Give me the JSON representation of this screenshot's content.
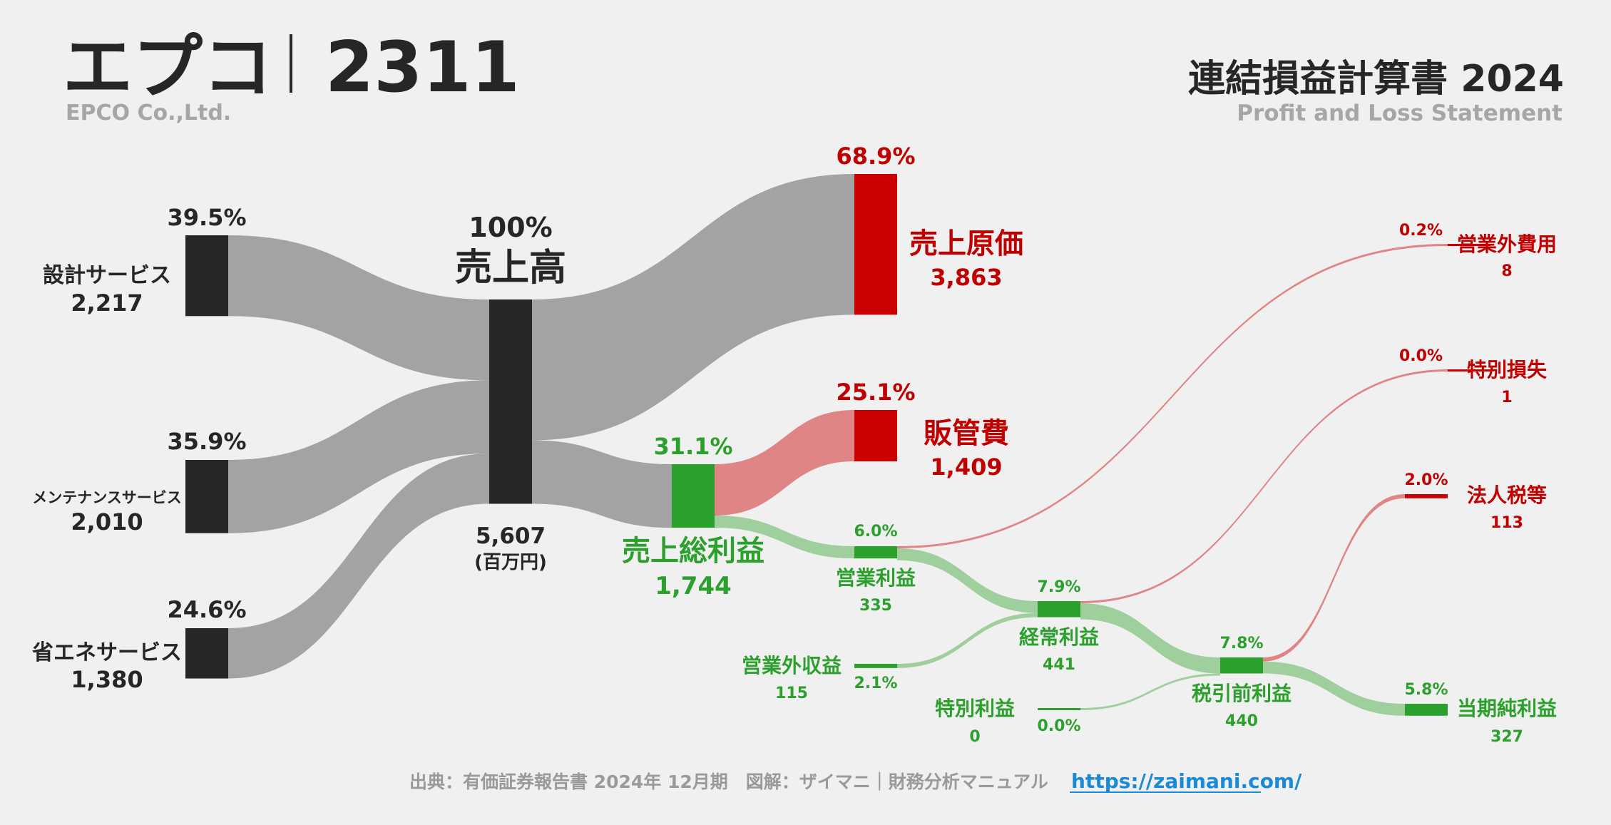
{
  "header": {
    "company_name": "エプコ",
    "separator": "|",
    "ticker": "2311",
    "company_en": "EPCO Co.,Ltd.",
    "statement_title": "連結損益計算書 2024",
    "statement_subtitle": "Profit and Loss Statement"
  },
  "footer": {
    "source": "出典：有価証券報告書 2024年 12月期　図解：ザイマニ｜財務分析マニュアル",
    "link": "https://zaimani.com/"
  },
  "colors": {
    "dark_node": "#262626",
    "gray_flow": "#a3a3a3",
    "red_node": "#cc0000",
    "red_flow": "#e08585",
    "green_node": "#2ca02c",
    "green_flow": "#9fcf9c",
    "green_text": "#2ca02c",
    "red_text": "#c00000",
    "link_color": "#1a8ad4",
    "muted_text": "#9a9a9a"
  },
  "chart_data": {
    "type": "sankey",
    "unit": "(百万円)",
    "nodes": [
      {
        "id": "design",
        "label": "設計サービス",
        "value": 2217,
        "value_label": "2,217",
        "pct": "39.5%"
      },
      {
        "id": "maint",
        "label": "メンテナンスサービス",
        "value": 2010,
        "value_label": "2,010",
        "pct": "35.9%"
      },
      {
        "id": "energy",
        "label": "省エネサービス",
        "value": 1380,
        "value_label": "1,380",
        "pct": "24.6%"
      },
      {
        "id": "revenue",
        "label": "売上高",
        "value": 5607,
        "value_label": "5,607",
        "pct": "100%"
      },
      {
        "id": "cogs",
        "label": "売上原価",
        "value": 3863,
        "value_label": "3,863",
        "pct": "68.9%"
      },
      {
        "id": "gross",
        "label": "売上総利益",
        "value": 1744,
        "value_label": "1,744",
        "pct": "31.1%"
      },
      {
        "id": "sga",
        "label": "販管費",
        "value": 1409,
        "value_label": "1,409",
        "pct": "25.1%"
      },
      {
        "id": "op",
        "label": "営業利益",
        "value": 335,
        "value_label": "335",
        "pct": "6.0%"
      },
      {
        "id": "nonop_inc",
        "label": "営業外収益",
        "value": 115,
        "value_label": "115",
        "pct": "2.1%"
      },
      {
        "id": "nonop_exp",
        "label": "営業外費用",
        "value": 8,
        "value_label": "8",
        "pct": "0.2%"
      },
      {
        "id": "ord",
        "label": "経常利益",
        "value": 441,
        "value_label": "441",
        "pct": "7.9%"
      },
      {
        "id": "ext_gain",
        "label": "特別利益",
        "value": 0,
        "value_label": "0",
        "pct": "0.0%"
      },
      {
        "id": "ext_loss",
        "label": "特別損失",
        "value": 1,
        "value_label": "1",
        "pct": "0.0%"
      },
      {
        "id": "pretax",
        "label": "税引前利益",
        "value": 440,
        "value_label": "440",
        "pct": "7.8%"
      },
      {
        "id": "tax",
        "label": "法人税等",
        "value": 113,
        "value_label": "113",
        "pct": "2.0%"
      },
      {
        "id": "net",
        "label": "当期純利益",
        "value": 327,
        "value_label": "327",
        "pct": "5.8%"
      }
    ],
    "links": [
      {
        "source": "design",
        "target": "revenue",
        "value": 2217
      },
      {
        "source": "maint",
        "target": "revenue",
        "value": 2010
      },
      {
        "source": "energy",
        "target": "revenue",
        "value": 1380
      },
      {
        "source": "revenue",
        "target": "cogs",
        "value": 3863
      },
      {
        "source": "revenue",
        "target": "gross",
        "value": 1744
      },
      {
        "source": "gross",
        "target": "sga",
        "value": 1409
      },
      {
        "source": "gross",
        "target": "op",
        "value": 335
      },
      {
        "source": "op",
        "target": "nonop_exp",
        "value": 8
      },
      {
        "source": "op",
        "target": "ord",
        "value": 327
      },
      {
        "source": "nonop_inc",
        "target": "ord",
        "value": 115
      },
      {
        "source": "ord",
        "target": "ext_loss",
        "value": 1
      },
      {
        "source": "ord",
        "target": "pretax",
        "value": 440
      },
      {
        "source": "ext_gain",
        "target": "pretax",
        "value": 0
      },
      {
        "source": "pretax",
        "target": "tax",
        "value": 113
      },
      {
        "source": "pretax",
        "target": "net",
        "value": 327
      }
    ]
  }
}
